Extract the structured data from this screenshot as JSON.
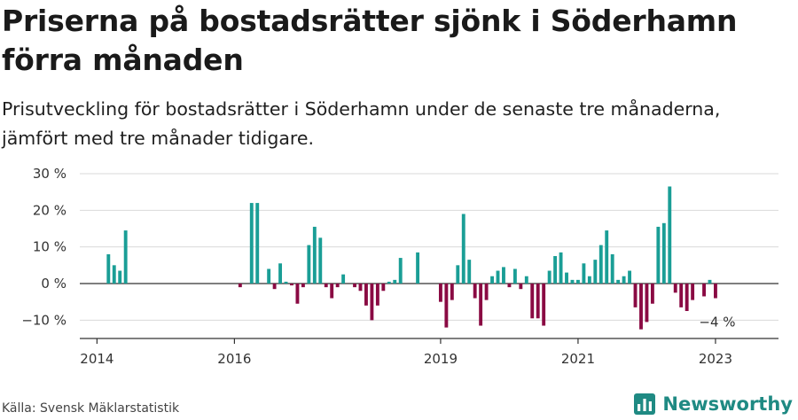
{
  "title": "Priserna på bostadsrätter sjönk i Söderhamn förra månaden",
  "subtitle": "Prisutveckling för bostadsrätter i Söderhamn under de senaste tre månaderna, jämfört med tre månader tidigare.",
  "source": "Källa: Svensk Mäklarstatistik",
  "brand": "Newsworthy",
  "chart_data": {
    "type": "bar",
    "x_unit": "month",
    "xlim": [
      "2013-10",
      "2023-12"
    ],
    "ylim": [
      -15,
      30
    ],
    "y_ticks": [
      {
        "value": 30,
        "label": "30 %"
      },
      {
        "value": 20,
        "label": "20 %"
      },
      {
        "value": 10,
        "label": "10 %"
      },
      {
        "value": 0,
        "label": "0 %"
      },
      {
        "value": -10,
        "label": "−10 %"
      }
    ],
    "x_ticks": [
      {
        "value": "2014-01",
        "label": "2014"
      },
      {
        "value": "2016-01",
        "label": "2016"
      },
      {
        "value": "2019-01",
        "label": "2019"
      },
      {
        "value": "2021-01",
        "label": "2021"
      },
      {
        "value": "2023-01",
        "label": "2023"
      }
    ],
    "grid": true,
    "colors": {
      "positive": "#1a9e96",
      "negative": "#8a0a43",
      "grid": "#d9d9d9",
      "axis": "#333333"
    },
    "annotation": {
      "x": "2023-01",
      "y": -4,
      "label": "−4 %"
    },
    "bars": [
      {
        "x": "2014-03",
        "y": 8
      },
      {
        "x": "2014-04",
        "y": 5
      },
      {
        "x": "2014-05",
        "y": 3.5
      },
      {
        "x": "2014-06",
        "y": 14.5
      },
      {
        "x": "2016-02",
        "y": -1
      },
      {
        "x": "2016-04",
        "y": 22
      },
      {
        "x": "2016-05",
        "y": 22
      },
      {
        "x": "2016-07",
        "y": 4
      },
      {
        "x": "2016-08",
        "y": -1.5
      },
      {
        "x": "2016-09",
        "y": 5.5
      },
      {
        "x": "2016-10",
        "y": 0.5
      },
      {
        "x": "2016-11",
        "y": -0.5
      },
      {
        "x": "2016-12",
        "y": -5.5
      },
      {
        "x": "2017-01",
        "y": -1
      },
      {
        "x": "2017-02",
        "y": 10.5
      },
      {
        "x": "2017-03",
        "y": 15.5
      },
      {
        "x": "2017-04",
        "y": 12.5
      },
      {
        "x": "2017-05",
        "y": -1
      },
      {
        "x": "2017-06",
        "y": -4
      },
      {
        "x": "2017-07",
        "y": -1
      },
      {
        "x": "2017-08",
        "y": 2.5
      },
      {
        "x": "2017-10",
        "y": -1
      },
      {
        "x": "2017-11",
        "y": -2
      },
      {
        "x": "2017-12",
        "y": -6
      },
      {
        "x": "2018-01",
        "y": -10
      },
      {
        "x": "2018-02",
        "y": -6
      },
      {
        "x": "2018-03",
        "y": -2
      },
      {
        "x": "2018-04",
        "y": 0.5
      },
      {
        "x": "2018-05",
        "y": 1
      },
      {
        "x": "2018-06",
        "y": 7
      },
      {
        "x": "2018-09",
        "y": 8.5
      },
      {
        "x": "2019-01",
        "y": -5
      },
      {
        "x": "2019-02",
        "y": -12
      },
      {
        "x": "2019-03",
        "y": -4.5
      },
      {
        "x": "2019-04",
        "y": 5
      },
      {
        "x": "2019-05",
        "y": 19
      },
      {
        "x": "2019-06",
        "y": 6.5
      },
      {
        "x": "2019-07",
        "y": -4
      },
      {
        "x": "2019-08",
        "y": -11.5
      },
      {
        "x": "2019-09",
        "y": -4.5
      },
      {
        "x": "2019-10",
        "y": 2
      },
      {
        "x": "2019-11",
        "y": 3.5
      },
      {
        "x": "2019-12",
        "y": 4.5
      },
      {
        "x": "2020-01",
        "y": -1
      },
      {
        "x": "2020-02",
        "y": 4
      },
      {
        "x": "2020-03",
        "y": -1.5
      },
      {
        "x": "2020-04",
        "y": 2
      },
      {
        "x": "2020-05",
        "y": -9.5
      },
      {
        "x": "2020-06",
        "y": -9.5
      },
      {
        "x": "2020-07",
        "y": -11.5
      },
      {
        "x": "2020-08",
        "y": 3.5
      },
      {
        "x": "2020-09",
        "y": 7.5
      },
      {
        "x": "2020-10",
        "y": 8.5
      },
      {
        "x": "2020-11",
        "y": 3
      },
      {
        "x": "2020-12",
        "y": 1
      },
      {
        "x": "2021-01",
        "y": 1
      },
      {
        "x": "2021-02",
        "y": 5.5
      },
      {
        "x": "2021-03",
        "y": 2
      },
      {
        "x": "2021-04",
        "y": 6.5
      },
      {
        "x": "2021-05",
        "y": 10.5
      },
      {
        "x": "2021-06",
        "y": 14.5
      },
      {
        "x": "2021-07",
        "y": 8
      },
      {
        "x": "2021-08",
        "y": 1
      },
      {
        "x": "2021-09",
        "y": 2
      },
      {
        "x": "2021-10",
        "y": 3.5
      },
      {
        "x": "2021-11",
        "y": -6.5
      },
      {
        "x": "2021-12",
        "y": -12.5
      },
      {
        "x": "2022-01",
        "y": -10.5
      },
      {
        "x": "2022-02",
        "y": -5.5
      },
      {
        "x": "2022-03",
        "y": 15.5
      },
      {
        "x": "2022-04",
        "y": 16.5
      },
      {
        "x": "2022-05",
        "y": 26.5
      },
      {
        "x": "2022-06",
        "y": -2.5
      },
      {
        "x": "2022-07",
        "y": -6.5
      },
      {
        "x": "2022-08",
        "y": -7.5
      },
      {
        "x": "2022-09",
        "y": -4.5
      },
      {
        "x": "2022-11",
        "y": -3.5
      },
      {
        "x": "2022-12",
        "y": 1
      },
      {
        "x": "2023-01",
        "y": -4
      }
    ]
  }
}
